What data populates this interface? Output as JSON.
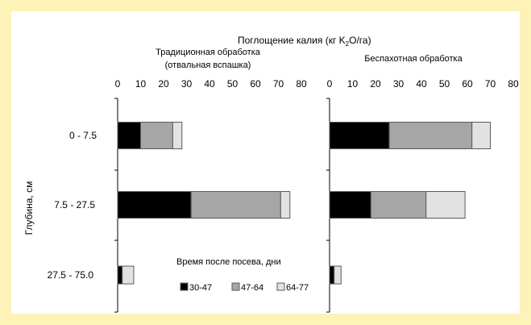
{
  "chart_data": {
    "type": "bar",
    "orientation": "horizontal",
    "stacked": true,
    "title": "Поглощение калия (кг K2O/га)",
    "title_parts": [
      "Поглощение калия (кг K",
      "2",
      "O/га)"
    ],
    "ylabel": "Глубина, см",
    "categories": [
      "0 - 7.5",
      "7.5 - 27.5",
      "27.5 - 75.0"
    ],
    "xlim": [
      0,
      80
    ],
    "xticks": [
      "0",
      "10",
      "20",
      "30",
      "40",
      "50",
      "60",
      "70",
      "80"
    ],
    "legend": {
      "title": "Время после посева, дни",
      "position": "bottom-center"
    },
    "series": [
      {
        "name": "30-47",
        "color": "#000000"
      },
      {
        "name": "47-64",
        "color": "#a6a6a6"
      },
      {
        "name": "64-77",
        "color": "#e2e2e2"
      }
    ],
    "panels": [
      {
        "title_lines": [
          "Традиционная обработка",
          "(отвальная вспашка)"
        ],
        "values": [
          [
            10,
            14,
            4
          ],
          [
            32,
            39,
            4
          ],
          [
            2,
            0,
            5
          ]
        ]
      },
      {
        "title_lines": [
          "Беспахотная обработка"
        ],
        "values": [
          [
            26,
            36,
            8
          ],
          [
            18,
            24,
            17
          ],
          [
            2,
            0,
            3
          ]
        ]
      }
    ]
  }
}
